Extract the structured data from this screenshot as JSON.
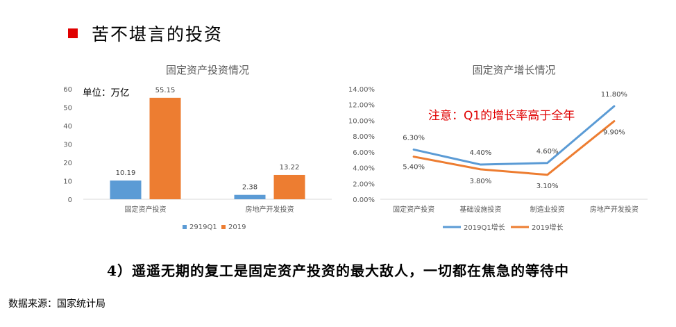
{
  "header": {
    "title": "苦不堪言的投资",
    "bullet_color": "#e00000"
  },
  "conclusion": "4）遥遥无期的复工是固定资产投资的最大敌人，一切都在焦急的等待中",
  "source": "数据来源：国家统计局",
  "chart_data": [
    {
      "type": "bar",
      "title": "固定资产投资情况",
      "annotation": "单位：万亿",
      "categories": [
        "固定资产投资",
        "房地产开发投资"
      ],
      "series": [
        {
          "name": "2919Q1",
          "values": [
            10.19,
            2.38
          ],
          "labels": [
            "10.19",
            "2.38"
          ],
          "color": "#5b9bd5"
        },
        {
          "name": "2019",
          "values": [
            55.15,
            13.22
          ],
          "labels": [
            "55.15",
            "13.22"
          ],
          "color": "#ed7d31"
        }
      ],
      "ylim": [
        0,
        60
      ],
      "yticks": [
        "0",
        "10",
        "20",
        "30",
        "40",
        "50",
        "60"
      ],
      "grid": false,
      "legend": "bottom"
    },
    {
      "type": "line",
      "title": "固定资产增长情况",
      "annotation": "注意：Q1的增长率高于全年",
      "categories": [
        "固定资产投资",
        "基础设施投资",
        "制造业投资",
        "房地产开发投资"
      ],
      "series": [
        {
          "name": "2019Q1增长",
          "values": [
            6.3,
            4.4,
            4.6,
            11.8
          ],
          "labels": [
            "6.30%",
            "4.40%",
            "4.60%",
            "11.80%"
          ],
          "color": "#5b9bd5"
        },
        {
          "name": "2019增长",
          "values": [
            5.4,
            3.8,
            3.1,
            9.9
          ],
          "labels": [
            "5.40%",
            "3.80%",
            "3.10%",
            "9.90%"
          ],
          "color": "#ed7d31"
        }
      ],
      "ylim": [
        0,
        14
      ],
      "yticks": [
        "0.00%",
        "2.00%",
        "4.00%",
        "6.00%",
        "8.00%",
        "10.00%",
        "12.00%",
        "14.00%"
      ],
      "grid": false,
      "legend": "bottom"
    }
  ]
}
